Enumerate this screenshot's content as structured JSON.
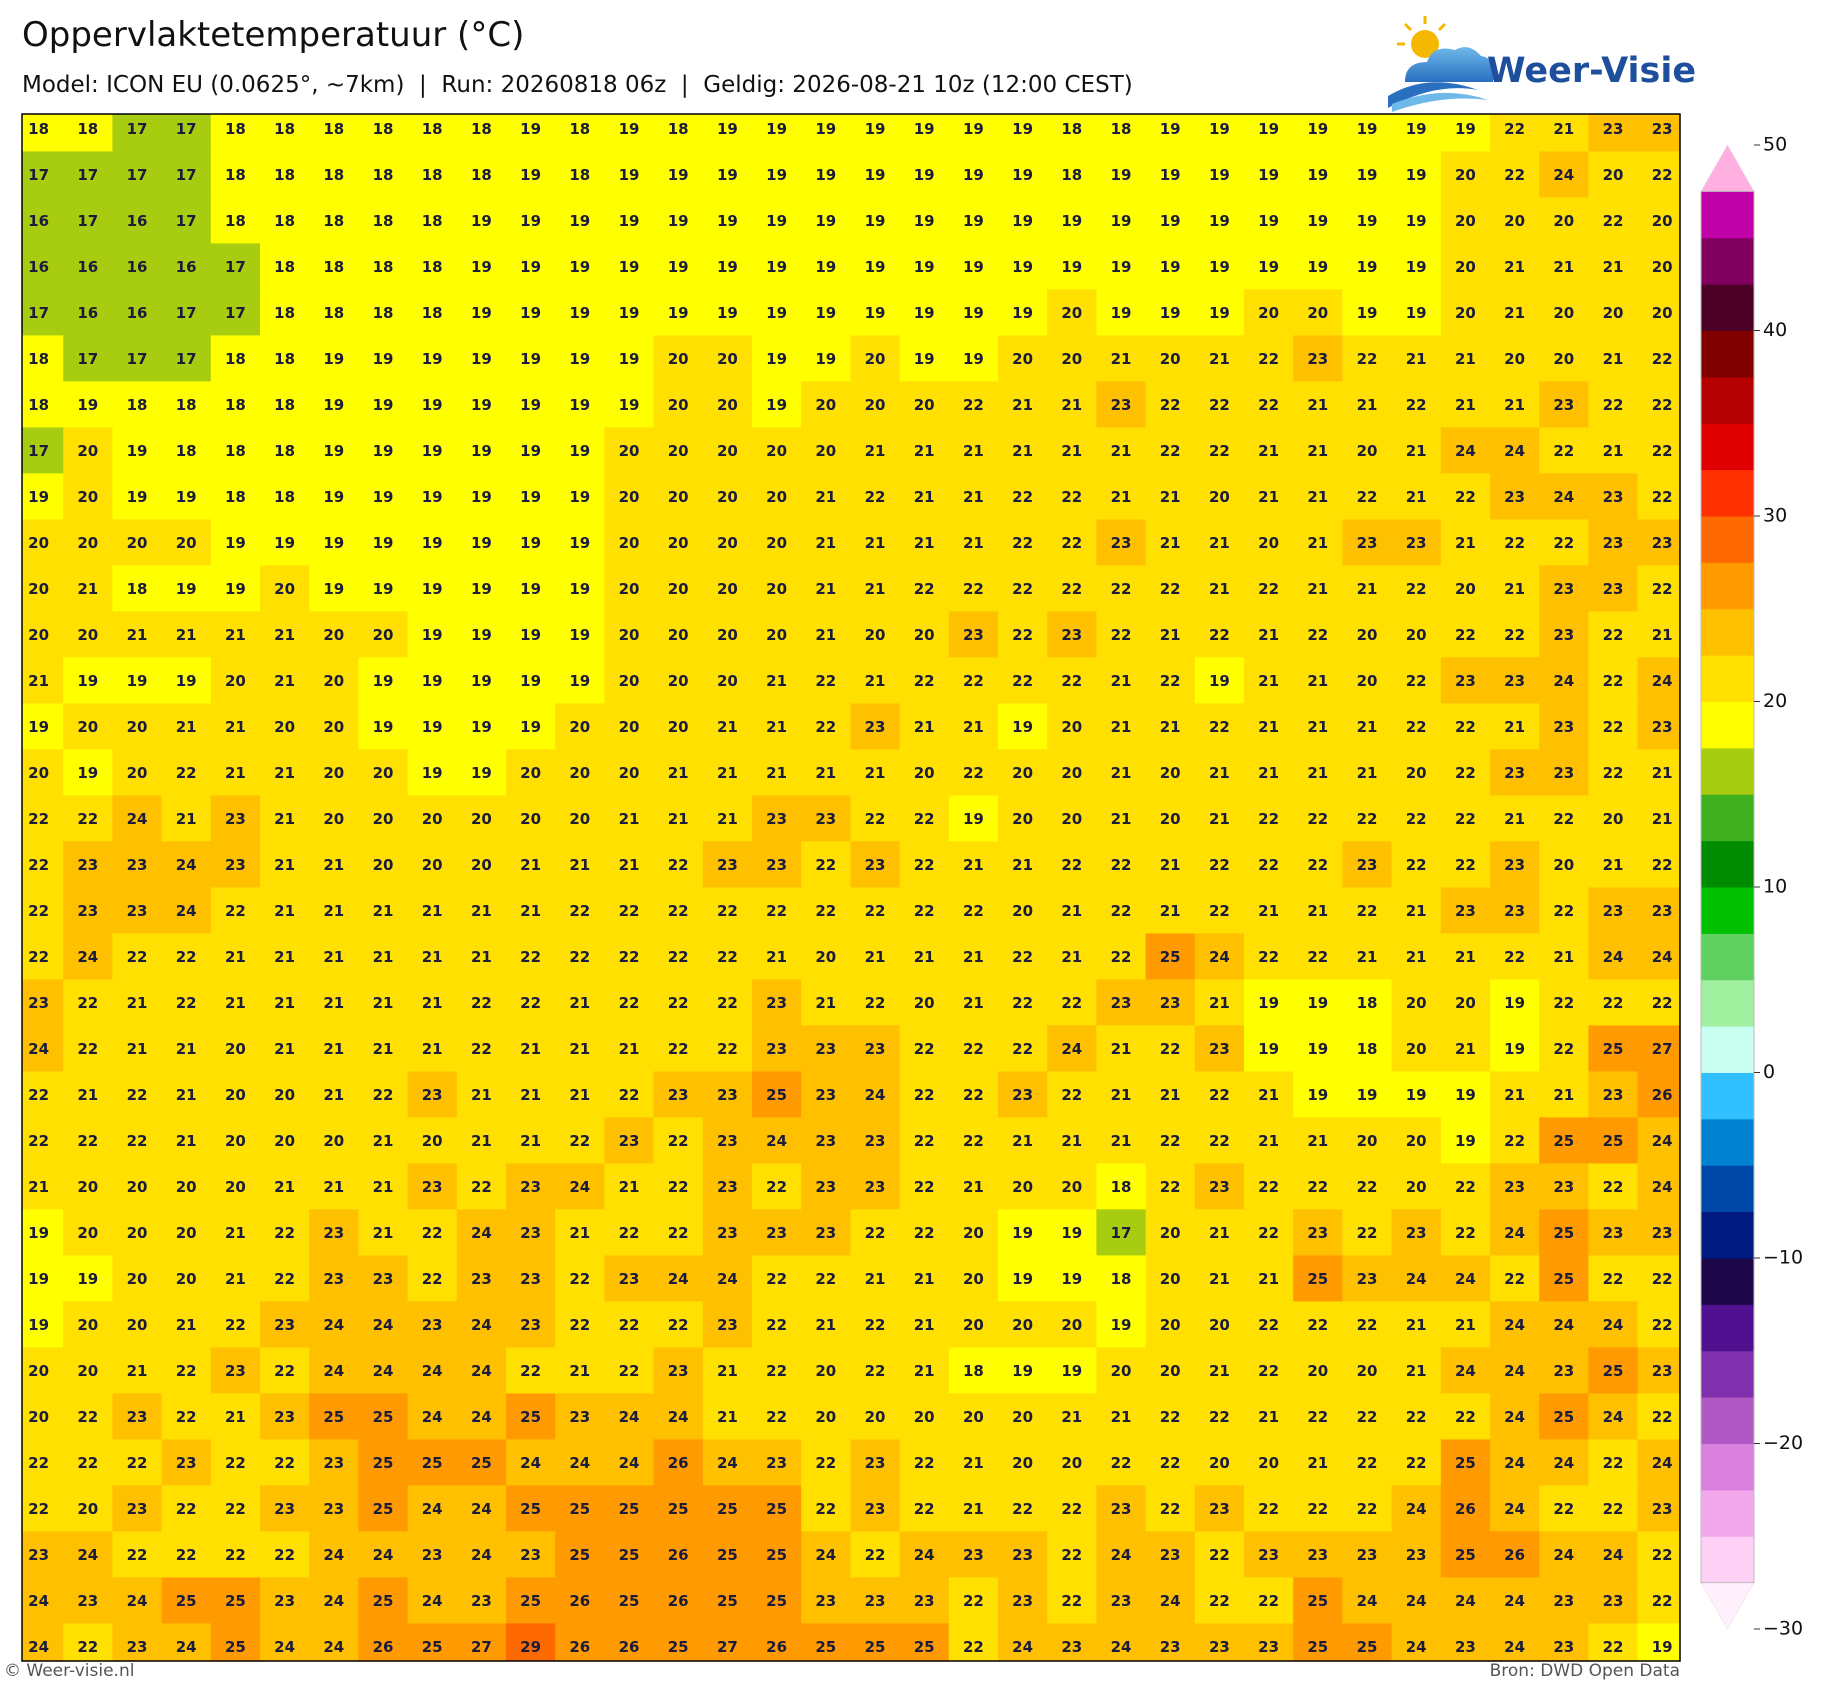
{
  "header": {
    "title": "Oppervlaktetemperatuur (°C)",
    "subtitle": "Model: ICON EU (0.0625°, ~7km)  |  Run: 20260818 06z  |  Geldig: 2026-08-21 10z (12:00 CEST)",
    "logo": "Weer-Visie"
  },
  "map": {
    "values": [
      [
        18,
        18,
        17,
        17,
        18,
        18,
        18,
        18,
        18,
        18,
        19,
        18,
        19,
        18,
        19,
        19,
        19,
        19,
        19,
        19,
        19,
        18,
        18,
        19,
        19,
        19,
        19,
        19,
        19,
        19,
        22,
        21,
        23,
        23
      ],
      [
        17,
        17,
        17,
        17,
        18,
        18,
        18,
        18,
        18,
        18,
        19,
        18,
        19,
        19,
        19,
        19,
        19,
        19,
        19,
        19,
        19,
        18,
        19,
        19,
        19,
        19,
        19,
        19,
        19,
        20,
        22,
        24,
        20,
        22
      ],
      [
        16,
        17,
        16,
        17,
        18,
        18,
        18,
        18,
        18,
        19,
        19,
        19,
        19,
        19,
        19,
        19,
        19,
        19,
        19,
        19,
        19,
        19,
        19,
        19,
        19,
        19,
        19,
        19,
        19,
        20,
        20,
        20,
        22,
        20
      ],
      [
        16,
        16,
        16,
        16,
        17,
        18,
        18,
        18,
        18,
        19,
        19,
        19,
        19,
        19,
        19,
        19,
        19,
        19,
        19,
        19,
        19,
        19,
        19,
        19,
        19,
        19,
        19,
        19,
        19,
        20,
        21,
        21,
        21,
        20
      ],
      [
        17,
        16,
        16,
        17,
        17,
        18,
        18,
        18,
        18,
        19,
        19,
        19,
        19,
        19,
        19,
        19,
        19,
        19,
        19,
        19,
        19,
        20,
        19,
        19,
        19,
        20,
        20,
        19,
        19,
        20,
        21,
        20,
        20,
        20
      ],
      [
        18,
        17,
        17,
        17,
        18,
        18,
        19,
        19,
        19,
        19,
        19,
        19,
        19,
        20,
        20,
        19,
        19,
        20,
        19,
        19,
        20,
        20,
        21,
        20,
        21,
        22,
        23,
        22,
        21,
        21,
        20,
        20,
        21,
        22
      ],
      [
        18,
        19,
        18,
        18,
        18,
        18,
        19,
        19,
        19,
        19,
        19,
        19,
        19,
        20,
        20,
        19,
        20,
        20,
        20,
        22,
        21,
        21,
        23,
        22,
        22,
        22,
        21,
        21,
        22,
        21,
        21,
        23,
        22,
        22
      ],
      [
        17,
        20,
        19,
        18,
        18,
        18,
        19,
        19,
        19,
        19,
        19,
        19,
        20,
        20,
        20,
        20,
        20,
        21,
        21,
        21,
        21,
        21,
        21,
        22,
        22,
        21,
        21,
        20,
        21,
        24,
        24,
        22,
        21,
        22
      ],
      [
        19,
        20,
        19,
        19,
        18,
        18,
        19,
        19,
        19,
        19,
        19,
        19,
        20,
        20,
        20,
        20,
        21,
        22,
        21,
        21,
        22,
        22,
        21,
        21,
        20,
        21,
        21,
        22,
        21,
        22,
        23,
        24,
        23,
        22
      ],
      [
        20,
        20,
        20,
        20,
        19,
        19,
        19,
        19,
        19,
        19,
        19,
        19,
        20,
        20,
        20,
        20,
        21,
        21,
        21,
        21,
        22,
        22,
        23,
        21,
        21,
        20,
        21,
        23,
        23,
        21,
        22,
        22,
        23,
        23
      ],
      [
        20,
        21,
        18,
        19,
        19,
        20,
        19,
        19,
        19,
        19,
        19,
        19,
        20,
        20,
        20,
        20,
        21,
        21,
        22,
        22,
        22,
        22,
        22,
        22,
        21,
        22,
        21,
        21,
        22,
        20,
        21,
        23,
        23,
        22
      ],
      [
        20,
        20,
        21,
        21,
        21,
        21,
        20,
        20,
        19,
        19,
        19,
        19,
        20,
        20,
        20,
        20,
        21,
        20,
        20,
        23,
        22,
        23,
        22,
        21,
        22,
        21,
        22,
        20,
        20,
        22,
        22,
        23,
        22,
        21
      ],
      [
        21,
        19,
        19,
        19,
        20,
        21,
        20,
        19,
        19,
        19,
        19,
        19,
        20,
        20,
        20,
        21,
        22,
        21,
        22,
        22,
        22,
        22,
        21,
        22,
        19,
        21,
        21,
        20,
        22,
        23,
        23,
        24,
        22,
        24
      ],
      [
        19,
        20,
        20,
        21,
        21,
        20,
        20,
        19,
        19,
        19,
        19,
        20,
        20,
        20,
        21,
        21,
        22,
        23,
        21,
        21,
        19,
        20,
        21,
        21,
        22,
        21,
        21,
        21,
        22,
        22,
        21,
        23,
        22,
        23
      ],
      [
        20,
        19,
        20,
        22,
        21,
        21,
        20,
        20,
        19,
        19,
        20,
        20,
        20,
        21,
        21,
        21,
        21,
        21,
        20,
        22,
        20,
        20,
        21,
        20,
        21,
        21,
        21,
        21,
        20,
        22,
        23,
        23,
        22,
        21
      ],
      [
        22,
        22,
        24,
        21,
        23,
        21,
        20,
        20,
        20,
        20,
        20,
        20,
        21,
        21,
        21,
        23,
        23,
        22,
        22,
        19,
        20,
        20,
        21,
        20,
        21,
        22,
        22,
        22,
        22,
        22,
        21,
        22,
        20,
        21
      ],
      [
        22,
        23,
        23,
        24,
        23,
        21,
        21,
        20,
        20,
        20,
        21,
        21,
        21,
        22,
        23,
        23,
        22,
        23,
        22,
        21,
        21,
        22,
        22,
        21,
        22,
        22,
        22,
        23,
        22,
        22,
        23,
        20,
        21,
        22
      ],
      [
        22,
        23,
        23,
        24,
        22,
        21,
        21,
        21,
        21,
        21,
        21,
        22,
        22,
        22,
        22,
        22,
        22,
        22,
        22,
        22,
        20,
        21,
        22,
        21,
        22,
        21,
        21,
        22,
        21,
        23,
        23,
        22,
        23,
        23
      ],
      [
        22,
        24,
        22,
        22,
        21,
        21,
        21,
        21,
        21,
        21,
        22,
        22,
        22,
        22,
        22,
        21,
        20,
        21,
        21,
        21,
        22,
        21,
        22,
        25,
        24,
        22,
        22,
        21,
        21,
        21,
        22,
        21,
        24,
        24
      ],
      [
        23,
        22,
        21,
        22,
        21,
        21,
        21,
        21,
        21,
        22,
        22,
        21,
        22,
        22,
        22,
        23,
        21,
        22,
        20,
        21,
        22,
        22,
        23,
        23,
        21,
        19,
        19,
        18,
        20,
        20,
        19,
        22,
        22,
        22
      ],
      [
        24,
        22,
        21,
        21,
        20,
        21,
        21,
        21,
        21,
        22,
        21,
        21,
        21,
        22,
        22,
        23,
        23,
        23,
        22,
        22,
        22,
        24,
        21,
        22,
        23,
        19,
        19,
        18,
        20,
        21,
        19,
        22,
        25,
        27
      ],
      [
        22,
        21,
        22,
        21,
        20,
        20,
        21,
        22,
        23,
        21,
        21,
        21,
        22,
        23,
        23,
        25,
        23,
        24,
        22,
        22,
        23,
        22,
        21,
        21,
        22,
        21,
        19,
        19,
        19,
        19,
        21,
        21,
        23,
        26
      ],
      [
        22,
        22,
        22,
        21,
        20,
        20,
        20,
        21,
        20,
        21,
        21,
        22,
        23,
        22,
        23,
        24,
        23,
        23,
        22,
        22,
        21,
        21,
        21,
        22,
        22,
        21,
        21,
        20,
        20,
        19,
        22,
        25,
        25,
        24
      ],
      [
        21,
        20,
        20,
        20,
        20,
        21,
        21,
        21,
        23,
        22,
        23,
        24,
        21,
        22,
        23,
        22,
        23,
        23,
        22,
        21,
        20,
        20,
        18,
        22,
        23,
        22,
        22,
        22,
        20,
        22,
        23,
        23,
        22,
        24
      ],
      [
        19,
        20,
        20,
        20,
        21,
        22,
        23,
        21,
        22,
        24,
        23,
        21,
        22,
        22,
        23,
        23,
        23,
        22,
        22,
        20,
        19,
        19,
        17,
        20,
        21,
        22,
        23,
        22,
        23,
        22,
        24,
        25,
        23,
        23
      ],
      [
        19,
        19,
        20,
        20,
        21,
        22,
        23,
        23,
        22,
        23,
        23,
        22,
        23,
        24,
        24,
        22,
        22,
        21,
        21,
        20,
        19,
        19,
        18,
        20,
        21,
        21,
        25,
        23,
        24,
        24,
        22,
        25,
        22,
        22
      ],
      [
        19,
        20,
        20,
        21,
        22,
        23,
        24,
        24,
        23,
        24,
        23,
        22,
        22,
        22,
        23,
        22,
        21,
        22,
        21,
        20,
        20,
        20,
        19,
        20,
        20,
        22,
        22,
        22,
        21,
        21,
        24,
        24,
        24,
        22
      ],
      [
        20,
        20,
        21,
        22,
        23,
        22,
        24,
        24,
        24,
        24,
        22,
        21,
        22,
        23,
        21,
        22,
        20,
        22,
        21,
        18,
        19,
        19,
        20,
        20,
        21,
        22,
        20,
        20,
        21,
        24,
        24,
        23,
        25,
        23
      ],
      [
        20,
        22,
        23,
        22,
        21,
        23,
        25,
        25,
        24,
        24,
        25,
        23,
        24,
        24,
        21,
        22,
        20,
        20,
        20,
        20,
        20,
        21,
        21,
        22,
        22,
        21,
        22,
        22,
        22,
        22,
        24,
        25,
        24,
        22
      ],
      [
        22,
        22,
        22,
        23,
        22,
        22,
        23,
        25,
        25,
        25,
        24,
        24,
        24,
        26,
        24,
        23,
        22,
        23,
        22,
        21,
        20,
        20,
        22,
        22,
        20,
        20,
        21,
        22,
        22,
        25,
        24,
        24,
        22,
        24
      ],
      [
        22,
        20,
        23,
        22,
        22,
        23,
        23,
        25,
        24,
        24,
        25,
        25,
        25,
        25,
        25,
        25,
        22,
        23,
        22,
        21,
        22,
        22,
        23,
        22,
        23,
        22,
        22,
        22,
        24,
        26,
        24,
        22,
        22,
        23
      ],
      [
        23,
        24,
        22,
        22,
        22,
        22,
        24,
        24,
        23,
        24,
        23,
        25,
        25,
        26,
        25,
        25,
        24,
        22,
        24,
        23,
        23,
        22,
        24,
        23,
        22,
        23,
        23,
        23,
        23,
        25,
        26,
        24,
        24,
        22
      ],
      [
        24,
        23,
        24,
        25,
        25,
        23,
        24,
        25,
        24,
        23,
        25,
        26,
        25,
        26,
        25,
        25,
        23,
        23,
        23,
        22,
        23,
        22,
        23,
        24,
        22,
        22,
        25,
        24,
        24,
        24,
        24,
        23,
        23,
        22
      ],
      [
        24,
        22,
        23,
        24,
        25,
        24,
        24,
        26,
        25,
        27,
        29,
        26,
        26,
        25,
        27,
        26,
        25,
        25,
        25,
        22,
        24,
        23,
        24,
        23,
        23,
        23,
        25,
        25,
        24,
        23,
        24,
        23,
        22,
        19
      ]
    ]
  },
  "colorbar": {
    "range": [
      -30,
      50
    ],
    "ticks": [
      50,
      40,
      30,
      20,
      10,
      0,
      {
        "value": -10,
        "label": "−10"
      },
      {
        "value": -20,
        "label": "−20"
      },
      {
        "value": -30,
        "label": "−30"
      }
    ],
    "colors": [
      "#fff0fb",
      "#ffd0f5",
      "#f4a8ec",
      "#d880dc",
      "#b058c4",
      "#8030ac",
      "#501090",
      "#1c0848",
      "#001a80",
      "#0048a8",
      "#0080d0",
      "#30c0ff",
      "#c8fff0",
      "#a0f0a0",
      "#60d060",
      "#00c000",
      "#008c00",
      "#40b020",
      "#a8cc10",
      "#ffff00",
      "#ffe000",
      "#ffc000",
      "#ff9a00",
      "#ff6a00",
      "#ff3000",
      "#e00000",
      "#b40000",
      "#800000",
      "#4d0026",
      "#800060",
      "#c000a8",
      "#ffb0e0"
    ]
  },
  "footer": {
    "left": "© Weer-visie.nl",
    "right": "Bron: DWD Open Data"
  }
}
